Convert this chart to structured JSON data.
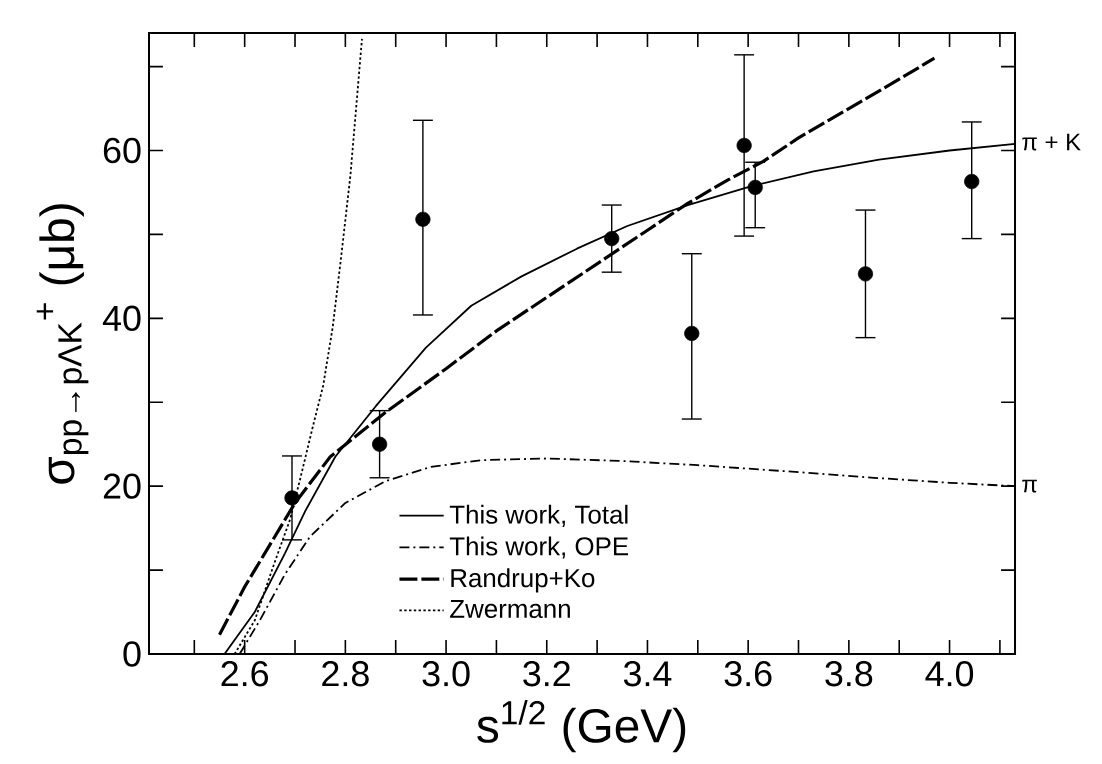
{
  "chart_data": {
    "type": "line",
    "xlabel": "s$^{1/2}$  (GeV)",
    "ylabel": "σ$_{pp→pΛK}$$^{+}$  (μb)",
    "xlim": [
      2.41,
      4.13
    ],
    "ylim": [
      0,
      74
    ],
    "xticks": [
      {
        "value": 2.5,
        "label": null
      },
      2.6,
      {
        "value": 2.7,
        "label": null
      },
      2.8,
      {
        "value": 2.9,
        "label": null
      },
      {
        "value": 3.0,
        "label": "3.0"
      },
      {
        "value": 3.1,
        "label": null
      },
      3.2,
      {
        "value": 3.3,
        "label": null
      },
      3.4,
      {
        "value": 3.5,
        "label": null
      },
      3.6,
      {
        "value": 3.7,
        "label": null
      },
      3.8,
      {
        "value": 3.9,
        "label": null
      },
      {
        "value": 4.0,
        "label": "4.0"
      },
      {
        "value": 4.1,
        "label": null
      }
    ],
    "yticks": [
      0,
      {
        "value": 10,
        "label": null
      },
      20,
      {
        "value": 30,
        "label": null
      },
      40,
      {
        "value": 50,
        "label": null
      },
      60,
      {
        "value": 70,
        "label": null
      }
    ],
    "legend": "bottom",
    "series": [
      {
        "type": "scatter",
        "color": "#000000",
        "marker": "circle",
        "x": [
          2.694,
          2.868,
          2.954,
          3.329,
          3.488,
          3.592,
          3.614,
          3.833,
          4.044
        ],
        "values": [
          18.6,
          25.0,
          51.8,
          49.5,
          38.2,
          60.6,
          55.6,
          45.3,
          56.3
        ],
        "errors": [
          5,
          4,
          [
            40.4,
            63.6
          ],
          4,
          [
            28,
            47.7
          ],
          [
            49.8,
            71.4
          ],
          [
            50.8,
            58.6
          ],
          [
            37.7,
            52.9
          ],
          [
            49.5,
            63.4
          ]
        ]
      },
      {
        "name": "This work, Total",
        "color": "#000000",
        "line_style": "solid",
        "x": [
          2.56,
          2.62,
          2.68,
          2.72,
          2.78,
          2.86,
          2.96,
          3.05,
          3.15,
          3.26,
          3.36,
          3.48,
          3.61,
          3.73,
          3.86,
          4.0,
          4.13
        ],
        "values": [
          0,
          5,
          12,
          17,
          23.5,
          29.5,
          36.5,
          41.5,
          45,
          48.3,
          51,
          53.5,
          55.8,
          57.5,
          58.9,
          60,
          60.8
        ]
      },
      {
        "name": "This work, OPE",
        "color": "#000000",
        "line_style": "dashdot",
        "x": [
          2.59,
          2.63,
          2.68,
          2.73,
          2.8,
          2.88,
          2.97,
          3.07,
          3.2,
          3.35,
          3.5,
          3.67,
          3.85,
          4.0,
          4.13
        ],
        "values": [
          0,
          4,
          9.5,
          14,
          18,
          20.6,
          22.3,
          23.1,
          23.3,
          23,
          22.5,
          21.8,
          21,
          20.4,
          20
        ]
      },
      {
        "name": "Randrup+Ko",
        "color": "#000000",
        "line_style": "dashed",
        "x": [
          2.55,
          2.6,
          2.65,
          2.7,
          2.77,
          2.88,
          3.0,
          3.1,
          3.2,
          3.3,
          3.4,
          3.48,
          3.56,
          3.63,
          3.7,
          3.8,
          3.9,
          3.97
        ],
        "values": [
          2.3,
          8,
          13,
          18,
          23.5,
          28.8,
          34,
          38.5,
          42.5,
          46.5,
          50.5,
          53.7,
          56.5,
          58.7,
          61.5,
          65,
          68.5,
          71
        ]
      },
      {
        "name": "Zwermann",
        "color": "#000000",
        "line_style": "dotted",
        "x": [
          2.58,
          2.62,
          2.66,
          2.69,
          2.71,
          2.735,
          2.756,
          2.775,
          2.79,
          2.81,
          2.833
        ],
        "values": [
          0,
          4,
          11,
          16,
          20.8,
          27,
          32,
          39,
          46.5,
          57,
          73.3
        ]
      }
    ],
    "annotations": [
      {
        "text": "π + K",
        "x": 4.13,
        "y": 61
      },
      {
        "text": "π",
        "x": 4.13,
        "y": 20
      }
    ]
  }
}
